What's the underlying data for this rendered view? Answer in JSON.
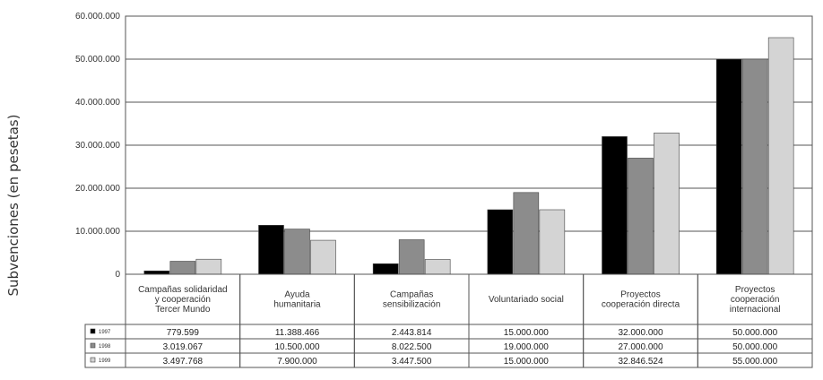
{
  "chart_data": {
    "type": "bar",
    "ylabel": "Subvenciones (en pesetas)",
    "ylim": [
      0,
      60000000
    ],
    "yticks": [
      "0",
      "10.000.000",
      "20.000.000",
      "30.000.000",
      "40.000.000",
      "50.000.000",
      "60.000.000"
    ],
    "ytick_values": [
      0,
      10000000,
      20000000,
      30000000,
      40000000,
      50000000,
      60000000
    ],
    "categories": [
      [
        "Campañas solidaridad",
        "y cooperación",
        "Tercer Mundo"
      ],
      [
        "Ayuda",
        "humanitaria"
      ],
      [
        "Campañas",
        "sensibilización"
      ],
      [
        "Voluntariado social"
      ],
      [
        "Proyectos",
        "cooperación directa"
      ],
      [
        "Proyectos",
        "cooperación",
        "internacional"
      ]
    ],
    "series": [
      {
        "name": "1997",
        "color": "#000000",
        "values": [
          779599,
          11388466,
          2443814,
          15000000,
          32000000,
          50000000
        ],
        "labels": [
          "779.599",
          "11.388.466",
          "2.443.814",
          "15.000.000",
          "32.000.000",
          "50.000.000"
        ]
      },
      {
        "name": "1998",
        "color": "#8c8c8c",
        "values": [
          3019067,
          10500000,
          8022500,
          19000000,
          27000000,
          50000000
        ],
        "labels": [
          "3.019.067",
          "10.500.000",
          "8.022.500",
          "19.000.000",
          "27.000.000",
          "50.000.000"
        ]
      },
      {
        "name": "1999",
        "color": "#d4d4d4",
        "values": [
          3497768,
          7900000,
          3447500,
          15000000,
          32846524,
          55000000
        ],
        "labels": [
          "3.497.768",
          "7.900.000",
          "3.447.500",
          "15.000.000",
          "32.846.524",
          "55.000.000"
        ]
      }
    ],
    "grid": true,
    "legend_placement": "table-left"
  }
}
